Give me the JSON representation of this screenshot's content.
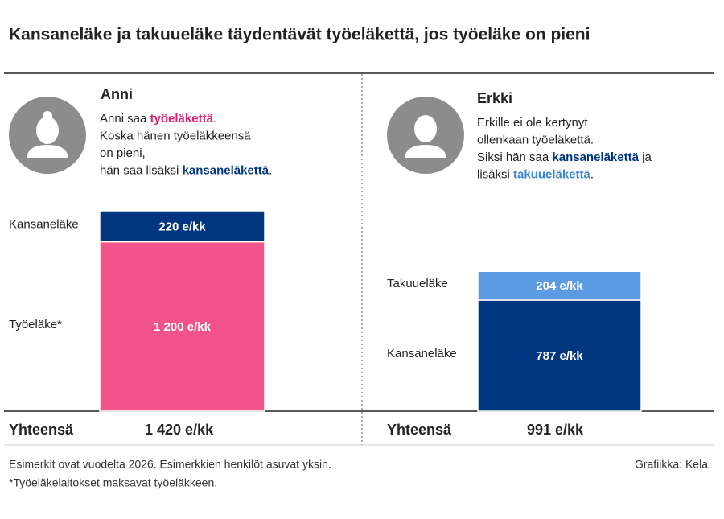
{
  "title": "Kansaneläke ja takuueläke täydentävät työeläkettä, jos työeläke on pieni",
  "chart_data": [
    {
      "type": "stacked_bar",
      "title": "Anni",
      "description": [
        [
          {
            "text": "Anni saa "
          },
          {
            "text": "työeläkettä",
            "color": "#e0206e"
          },
          {
            "text": "."
          }
        ],
        [
          {
            "text": "Koska hänen työeläkkeensä"
          }
        ],
        [
          {
            "text": "on pieni,"
          }
        ],
        [
          {
            "text": "hän saa lisäksi "
          },
          {
            "text": "kansaneläkettä",
            "color": "#003580"
          },
          {
            "text": "."
          }
        ]
      ],
      "series": [
        {
          "name": "Työeläke*",
          "color": "#f1538a",
          "values": [
            1200
          ],
          "value_labels": [
            "1 200 e/kk"
          ]
        },
        {
          "name": "Kansaneläke",
          "color": "#003580",
          "values": [
            220
          ],
          "value_labels": [
            "220 e/kk"
          ]
        }
      ],
      "total_label": "Yhteensä",
      "total": "1 420 e/kk"
    },
    {
      "type": "stacked_bar",
      "title": "Erkki",
      "description": [
        [
          {
            "text": "Erkille ei ole kertynyt"
          }
        ],
        [
          {
            "text": "ollenkaan työeläkettä."
          }
        ],
        [
          {
            "text": "Siksi hän saa "
          },
          {
            "text": "kansaneläkettä",
            "color": "#003580"
          },
          {
            "text": " ja"
          }
        ],
        [
          {
            "text": "lisäksi "
          },
          {
            "text": "takuueläkettä",
            "color": "#3a85d8"
          },
          {
            "text": "."
          }
        ]
      ],
      "series": [
        {
          "name": "Kansaneläke",
          "color": "#003580",
          "values": [
            787
          ],
          "value_labels": [
            "787 e/kk"
          ]
        },
        {
          "name": "Takuueläke",
          "color": "#5b9be3",
          "values": [
            204
          ],
          "value_labels": [
            "204 e/kk"
          ]
        }
      ],
      "total_label": "Yhteensä",
      "total": "991 e/kk"
    }
  ],
  "footnotes": [
    "Esimerkit ovat vuodelta 2026. Esimerkkien henkilöt asuvat yksin.",
    "*Työeläkelaitokset maksavat työeläkkeen."
  ],
  "credit": "Grafiikka: Kela"
}
